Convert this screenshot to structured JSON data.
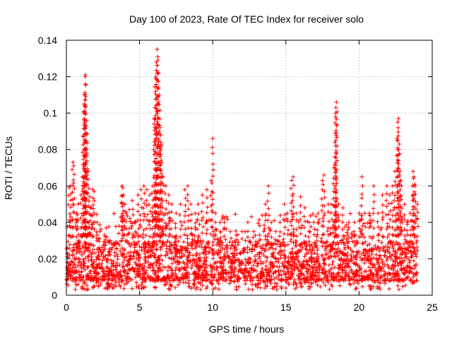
{
  "chart_data": {
    "type": "scatter",
    "title": "Day 100 of 2023, Rate Of TEC Index for receiver solo",
    "xlabel": "GPS time / hours",
    "ylabel": "ROTI / TECUs",
    "xlim": [
      0,
      25
    ],
    "ylim": [
      0,
      0.14
    ],
    "xticks": [
      0,
      5,
      10,
      15,
      20,
      25
    ],
    "yticks": [
      0,
      0.02,
      0.04,
      0.06,
      0.08,
      0.1,
      0.12,
      0.14
    ],
    "xtick_labels": [
      "0",
      "5",
      "10",
      "15",
      "20",
      "25"
    ],
    "ytick_labels": [
      "0",
      "0.02",
      "0.04",
      "0.06",
      "0.08",
      "0.1",
      "0.12",
      "0.14"
    ],
    "grid": true,
    "marker": "+",
    "marker_color": "#ff0000",
    "series": [
      {
        "name": "ROTI",
        "points": [
          [
            0.1,
            0.023
          ],
          [
            0.2,
            0.059
          ],
          [
            0.3,
            0.06
          ],
          [
            0.45,
            0.073
          ],
          [
            0.5,
            0.071
          ],
          [
            0.7,
            0.045
          ],
          [
            0.8,
            0.05
          ],
          [
            1.0,
            0.055
          ],
          [
            1.1,
            0.065
          ],
          [
            1.15,
            0.087
          ],
          [
            1.2,
            0.1
          ],
          [
            1.22,
            0.105
          ],
          [
            1.25,
            0.11
          ],
          [
            1.28,
            0.12
          ],
          [
            1.3,
            0.121
          ],
          [
            1.32,
            0.109
          ],
          [
            1.35,
            0.093
          ],
          [
            1.4,
            0.078
          ],
          [
            1.5,
            0.068
          ],
          [
            1.6,
            0.054
          ],
          [
            1.7,
            0.048
          ],
          [
            1.8,
            0.058
          ],
          [
            1.9,
            0.057
          ],
          [
            2.1,
            0.04
          ],
          [
            2.3,
            0.035
          ],
          [
            2.6,
            0.033
          ],
          [
            3.0,
            0.03
          ],
          [
            3.3,
            0.028
          ],
          [
            3.6,
            0.038
          ],
          [
            3.8,
            0.06
          ],
          [
            3.85,
            0.059
          ],
          [
            3.9,
            0.055
          ],
          [
            4.0,
            0.05
          ],
          [
            4.1,
            0.045
          ],
          [
            4.3,
            0.047
          ],
          [
            4.5,
            0.052
          ],
          [
            4.7,
            0.04
          ],
          [
            4.9,
            0.055
          ],
          [
            5.1,
            0.058
          ],
          [
            5.3,
            0.06
          ],
          [
            5.5,
            0.058
          ],
          [
            5.7,
            0.055
          ],
          [
            5.9,
            0.06
          ],
          [
            6.0,
            0.097
          ],
          [
            6.05,
            0.103
          ],
          [
            6.1,
            0.12
          ],
          [
            6.15,
            0.128
          ],
          [
            6.2,
            0.135
          ],
          [
            6.25,
            0.131
          ],
          [
            6.3,
            0.122
          ],
          [
            6.35,
            0.11
          ],
          [
            6.4,
            0.092
          ],
          [
            6.45,
            0.088
          ],
          [
            6.5,
            0.082
          ],
          [
            6.6,
            0.065
          ],
          [
            6.8,
            0.06
          ],
          [
            7.0,
            0.055
          ],
          [
            7.2,
            0.05
          ],
          [
            7.5,
            0.045
          ],
          [
            7.8,
            0.05
          ],
          [
            8.1,
            0.058
          ],
          [
            8.3,
            0.06
          ],
          [
            8.5,
            0.05
          ],
          [
            8.8,
            0.045
          ],
          [
            9.0,
            0.05
          ],
          [
            9.3,
            0.055
          ],
          [
            9.6,
            0.058
          ],
          [
            9.9,
            0.063
          ],
          [
            10.0,
            0.086
          ],
          [
            10.2,
            0.045
          ],
          [
            10.5,
            0.04
          ],
          [
            10.8,
            0.04
          ],
          [
            11.2,
            0.035
          ],
          [
            11.6,
            0.033
          ],
          [
            12.0,
            0.035
          ],
          [
            12.4,
            0.04
          ],
          [
            12.8,
            0.035
          ],
          [
            13.2,
            0.033
          ],
          [
            13.6,
            0.05
          ],
          [
            13.8,
            0.06
          ],
          [
            14.0,
            0.04
          ],
          [
            14.3,
            0.035
          ],
          [
            14.6,
            0.04
          ],
          [
            14.9,
            0.05
          ],
          [
            15.1,
            0.045
          ],
          [
            15.4,
            0.063
          ],
          [
            15.5,
            0.065
          ],
          [
            15.7,
            0.045
          ],
          [
            16.0,
            0.054
          ],
          [
            16.3,
            0.048
          ],
          [
            16.6,
            0.04
          ],
          [
            16.9,
            0.04
          ],
          [
            17.2,
            0.045
          ],
          [
            17.5,
            0.063
          ],
          [
            17.6,
            0.066
          ],
          [
            17.9,
            0.05
          ],
          [
            18.1,
            0.05
          ],
          [
            18.3,
            0.07
          ],
          [
            18.35,
            0.076
          ],
          [
            18.4,
            0.1
          ],
          [
            18.42,
            0.103
          ],
          [
            18.45,
            0.106
          ],
          [
            18.6,
            0.05
          ],
          [
            18.9,
            0.048
          ],
          [
            19.3,
            0.04
          ],
          [
            19.7,
            0.04
          ],
          [
            20.0,
            0.045
          ],
          [
            20.2,
            0.065
          ],
          [
            20.4,
            0.045
          ],
          [
            20.7,
            0.045
          ],
          [
            21.0,
            0.06
          ],
          [
            21.3,
            0.045
          ],
          [
            21.6,
            0.055
          ],
          [
            21.9,
            0.06
          ],
          [
            22.1,
            0.055
          ],
          [
            22.3,
            0.06
          ],
          [
            22.45,
            0.068
          ],
          [
            22.6,
            0.085
          ],
          [
            22.65,
            0.095
          ],
          [
            22.7,
            0.097
          ],
          [
            22.75,
            0.083
          ],
          [
            22.8,
            0.068
          ],
          [
            22.9,
            0.06
          ],
          [
            23.1,
            0.05
          ],
          [
            23.3,
            0.04
          ],
          [
            23.5,
            0.045
          ],
          [
            23.65,
            0.06
          ],
          [
            23.7,
            0.068
          ],
          [
            23.75,
            0.065
          ],
          [
            23.85,
            0.06
          ],
          [
            24.0,
            0.05
          ]
        ],
        "baseline_band": {
          "x_range": [
            0,
            24
          ],
          "y_min": 0.003,
          "y_typical_low": 0.008,
          "y_typical_high": 0.03,
          "y_max": 0.045
        }
      }
    ]
  }
}
